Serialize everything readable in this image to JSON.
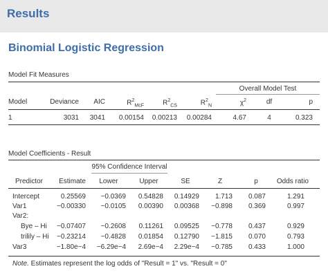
{
  "header": {
    "title": "Results"
  },
  "analysis": {
    "title": "Binomial Logistic Regression"
  },
  "fit": {
    "caption": "Model Fit Measures",
    "group_header": "Overall Model Test",
    "columns": [
      "Model",
      "Deviance",
      "AIC",
      "R²McF",
      "R²CS",
      "R²N",
      "χ²",
      "df",
      "p"
    ],
    "row": [
      "1",
      "3031",
      "3041",
      "0.00154",
      "0.00213",
      "0.00284",
      "4.67",
      "4",
      "0.323"
    ]
  },
  "coef": {
    "caption": "Model Coefficients - Result",
    "group_header": "95% Confidence Interval",
    "columns": [
      "Predictor",
      "Estimate",
      "Lower",
      "Upper",
      "SE",
      "Z",
      "p",
      "Odds ratio"
    ],
    "rows": [
      [
        "Intercept",
        "0.25569",
        "−0.0369",
        "0.54828",
        "0.14929",
        "1.713",
        "0.087",
        "1.291"
      ],
      [
        "Var1",
        "−0.00330",
        "−0.0105",
        "0.00390",
        "0.00368",
        "−0.898",
        "0.369",
        "0.997"
      ],
      [
        "Var2:",
        "",
        "",
        "",
        "",
        "",
        "",
        ""
      ],
      [
        "Bye – Hi",
        "−0.07407",
        "−0.2608",
        "0.11261",
        "0.09525",
        "−0.778",
        "0.437",
        "0.929"
      ],
      [
        "trilily – Hi",
        "−0.23214",
        "−0.4828",
        "0.01854",
        "0.12790",
        "−1.815",
        "0.070",
        "0.793"
      ],
      [
        "Var3",
        "−1.80e−4",
        "−6.29e−4",
        "2.69e−4",
        "2.29e−4",
        "−0.785",
        "0.433",
        "1.000"
      ]
    ]
  },
  "note": {
    "label": "Note.",
    "text": " Estimates represent the log odds of \"Result = 1\" vs. \"Result = 0\""
  }
}
